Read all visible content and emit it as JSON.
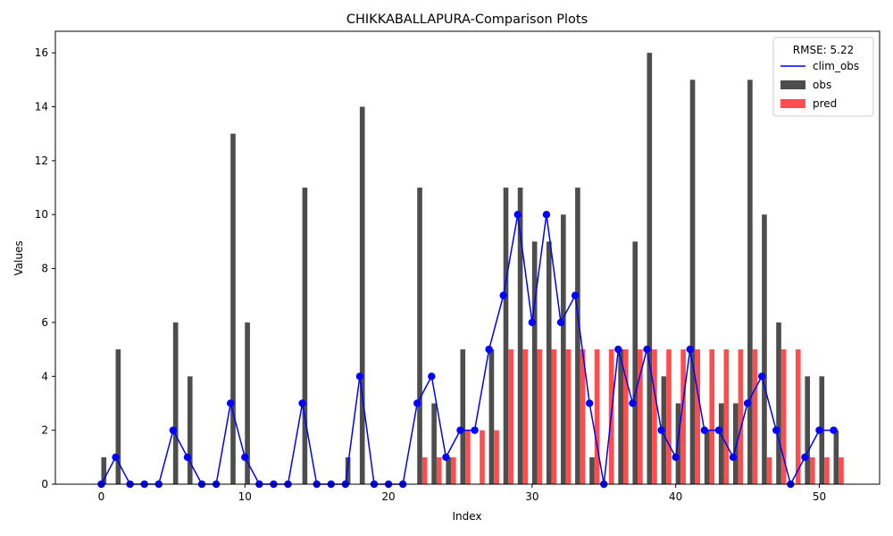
{
  "chart_data": {
    "type": "bar",
    "title": "CHIKKABALLAPURA-Comparison Plots",
    "xlabel": "Index",
    "ylabel": "Values",
    "xlim": [
      -3.2,
      54.2
    ],
    "ylim": [
      0,
      16.8
    ],
    "xticks": [
      0,
      10,
      20,
      30,
      40,
      50
    ],
    "yticks": [
      0,
      2,
      4,
      6,
      8,
      10,
      12,
      14,
      16
    ],
    "legend": {
      "title": "RMSE: 5.22",
      "placement": "upper right"
    },
    "x": [
      0,
      1,
      2,
      3,
      4,
      5,
      6,
      7,
      8,
      9,
      10,
      11,
      12,
      13,
      14,
      15,
      16,
      17,
      18,
      19,
      20,
      21,
      22,
      23,
      24,
      25,
      26,
      27,
      28,
      29,
      30,
      31,
      32,
      33,
      34,
      35,
      36,
      37,
      38,
      39,
      40,
      41,
      42,
      43,
      44,
      45,
      46,
      47,
      48,
      49,
      50,
      51
    ],
    "series": [
      {
        "name": "clim_obs",
        "kind": "line",
        "color": "#0000ff",
        "values": [
          0,
          1,
          0,
          0,
          0,
          2,
          1,
          0,
          0,
          3,
          1,
          0,
          0,
          0,
          3,
          0,
          0,
          0,
          4,
          0,
          0,
          0,
          3,
          4,
          1,
          2,
          2,
          5,
          7,
          10,
          6,
          10,
          6,
          7,
          3,
          0,
          5,
          3,
          5,
          2,
          1,
          5,
          2,
          2,
          1,
          3,
          4,
          2,
          0,
          1,
          2,
          2
        ]
      },
      {
        "name": "obs",
        "kind": "bar",
        "color": "#4d4d4d",
        "values": [
          1,
          5,
          0,
          0,
          0,
          6,
          4,
          0,
          0,
          13,
          6,
          0,
          0,
          0,
          11,
          0,
          0,
          1,
          14,
          0,
          0,
          0,
          11,
          3,
          1,
          5,
          0,
          5,
          11,
          11,
          9,
          9,
          10,
          11,
          1,
          0,
          5,
          9,
          16,
          4,
          3,
          15,
          2,
          3,
          3,
          15,
          10,
          6,
          0,
          4,
          4,
          2
        ]
      },
      {
        "name": "pred",
        "kind": "bar",
        "color": "#ff4d4d",
        "values": [
          0,
          0,
          0,
          0,
          0,
          0,
          0,
          0,
          0,
          0,
          0,
          0,
          0,
          0,
          0,
          0,
          0,
          0,
          0,
          0,
          0,
          0,
          1,
          1,
          1,
          2,
          2,
          2,
          5,
          5,
          5,
          5,
          5,
          5,
          5,
          5,
          5,
          5,
          5,
          5,
          5,
          5,
          5,
          5,
          5,
          5,
          1,
          5,
          5,
          1,
          1,
          1
        ]
      }
    ]
  }
}
